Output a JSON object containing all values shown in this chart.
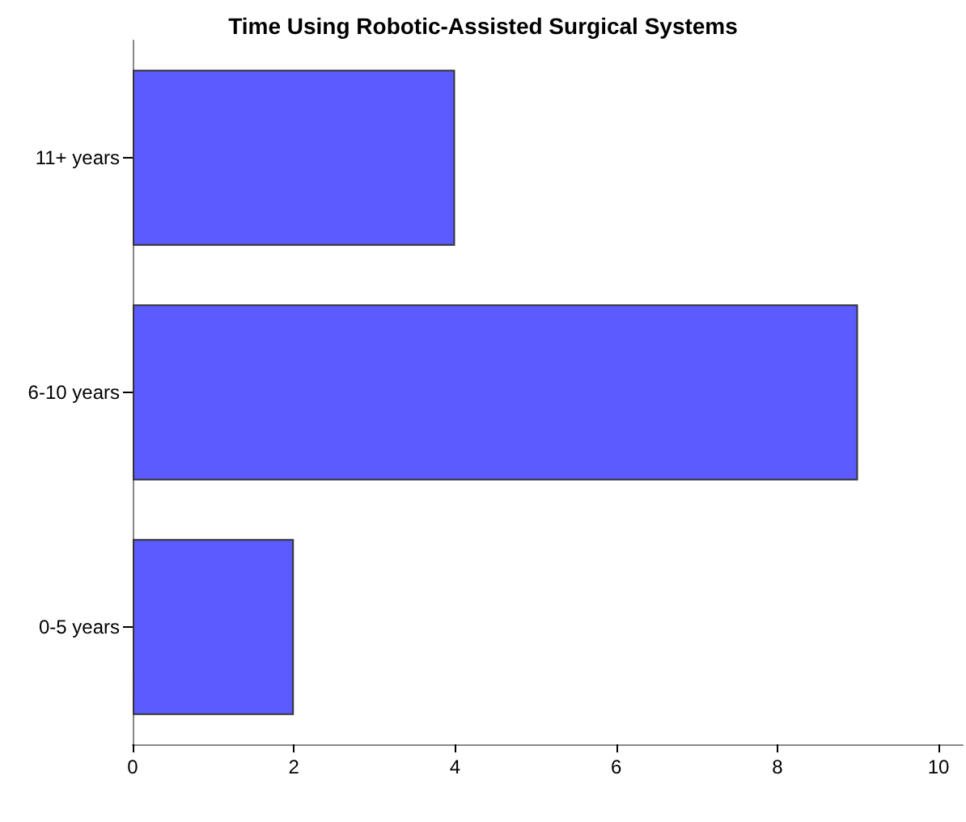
{
  "chart_data": {
    "type": "bar",
    "orientation": "horizontal",
    "title": "Time Using Robotic-Assisted Surgical Systems",
    "categories": [
      "11+ years",
      "6-10 years",
      "0-5 years"
    ],
    "values": [
      4,
      9,
      2
    ],
    "color": "#5b5bff",
    "xlim": [
      0,
      10.3
    ],
    "xticks": [
      0,
      2,
      4,
      6,
      8,
      10
    ],
    "grid": false
  }
}
